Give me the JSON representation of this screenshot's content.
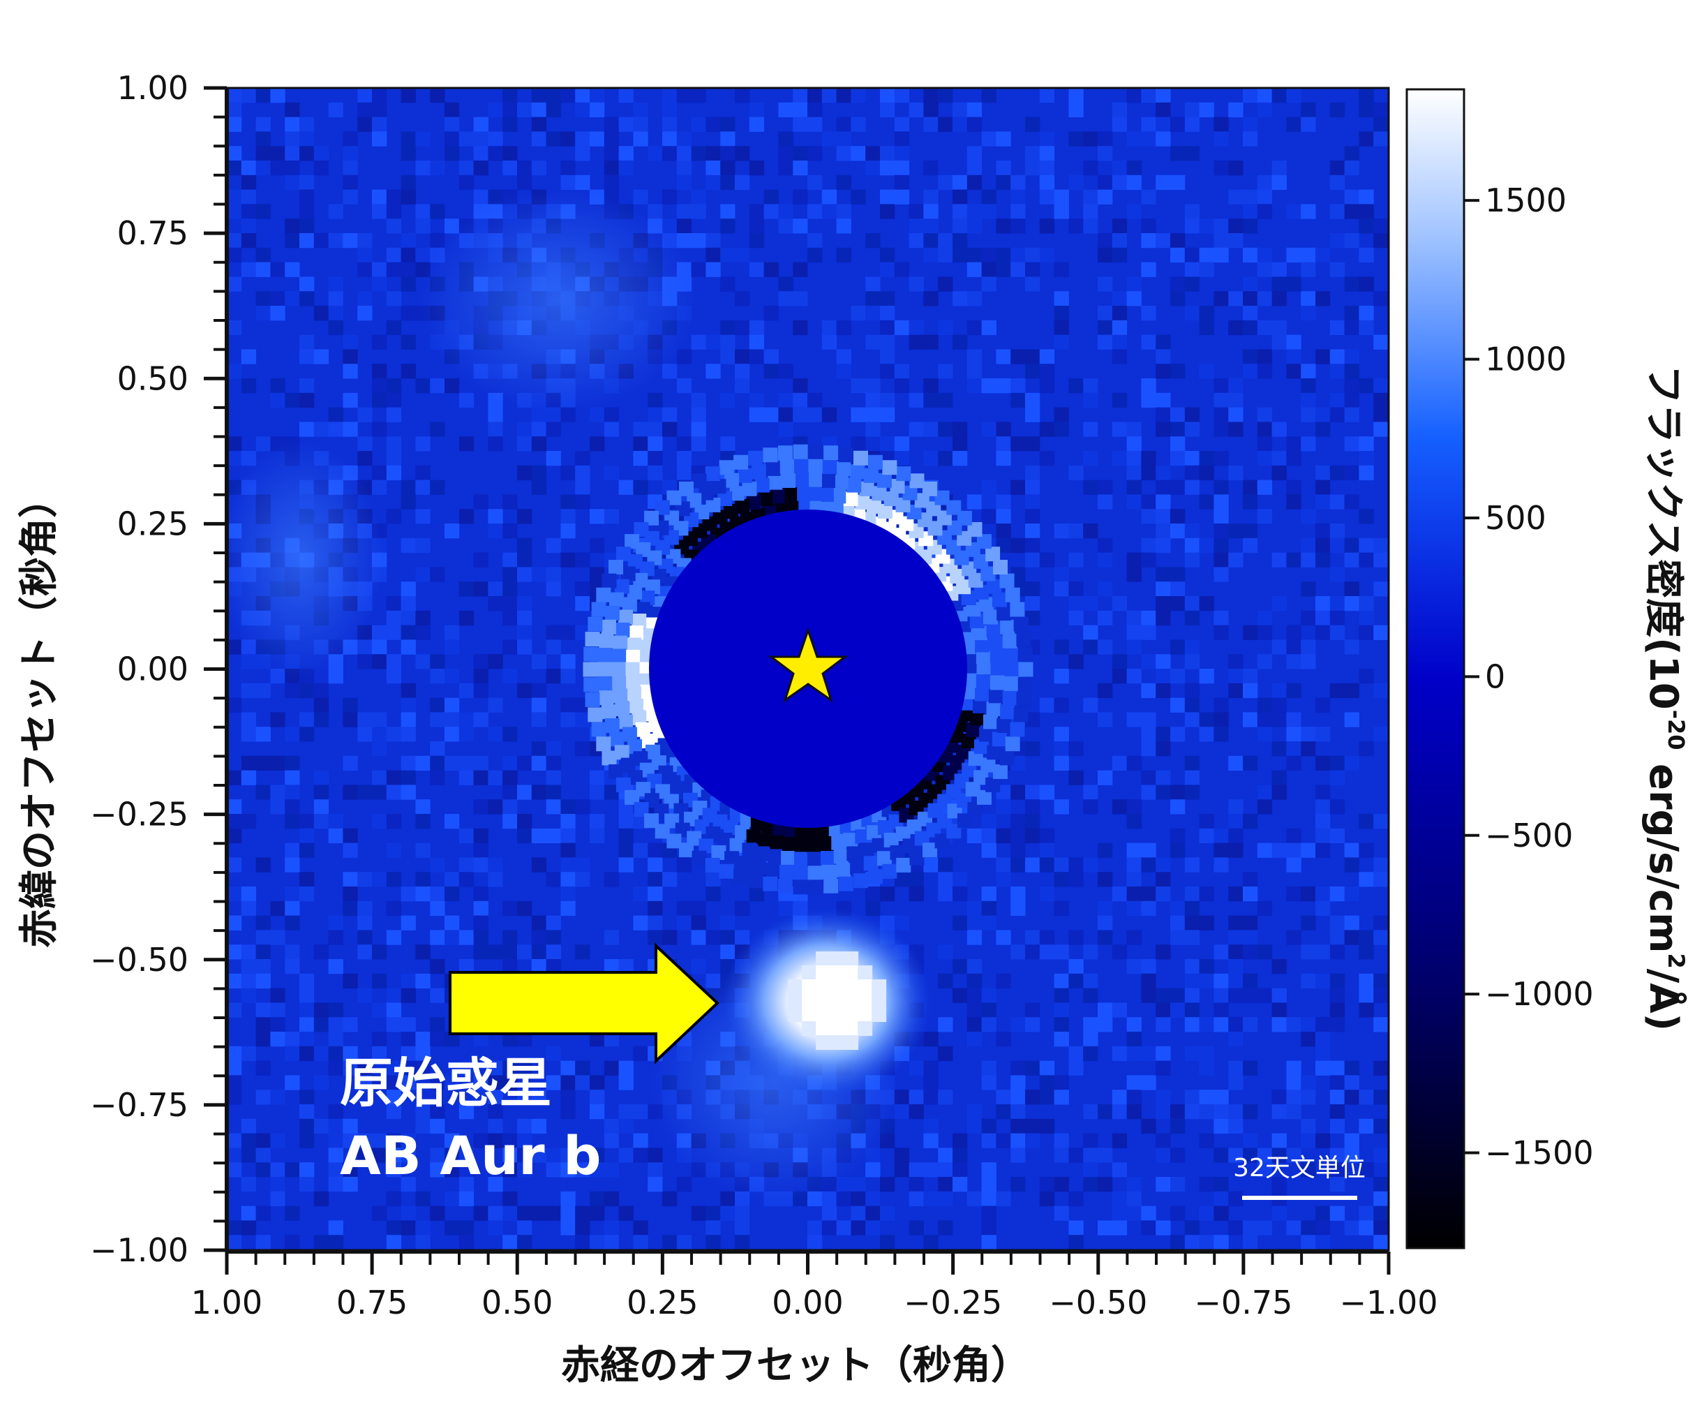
{
  "chart_data": {
    "type": "heatmap",
    "title": "",
    "xlabel": "赤経のオフセット（秒角）",
    "ylabel": "赤緯のオフセット（秒角）",
    "xlim": [
      1.0,
      -1.0
    ],
    "ylim": [
      -1.0,
      1.0
    ],
    "x_ticks": [
      "1.00",
      "0.75",
      "0.50",
      "0.25",
      "0.00",
      "−0.25",
      "−0.50",
      "−0.75",
      "−1.00"
    ],
    "y_ticks": [
      "1.00",
      "0.75",
      "0.50",
      "0.25",
      "0.00",
      "−0.25",
      "−0.50",
      "−0.75",
      "−1.00"
    ],
    "colorbar": {
      "label": "フラックス密度(10-20 erg/s/cm2/Å)",
      "label_main": "フラックス密度(10",
      "label_sup1": "-20",
      "label_mid": " erg/s/cm",
      "label_sup2": "2",
      "label_end": "/Å)",
      "range": [
        -1800,
        1850
      ],
      "ticks": [
        "1500",
        "1000",
        "500",
        "0",
        "−500",
        "−1000",
        "−1500"
      ],
      "colormap": [
        "#000000",
        "#00007a",
        "#0000d0",
        "#1a64ff",
        "#a8c8ff",
        "#ffffff"
      ]
    },
    "features": [
      {
        "x": 0.0,
        "y": 0.0,
        "value": 0,
        "note": "masked star"
      },
      {
        "x": -0.2,
        "y": 0.25,
        "value": 1800
      },
      {
        "x": 0.33,
        "y": 0.0,
        "value": 1700
      },
      {
        "x": -0.05,
        "y": -0.57,
        "value": 1850
      }
    ],
    "annotations": {
      "planet_line1": "原始惑星",
      "planet_line2": "AB Aur b",
      "scale_bar_label": "32天文単位"
    },
    "colors": {
      "star": "#ffee00",
      "arrow": "#ffff00",
      "background_map": "#0c2fd6"
    }
  }
}
